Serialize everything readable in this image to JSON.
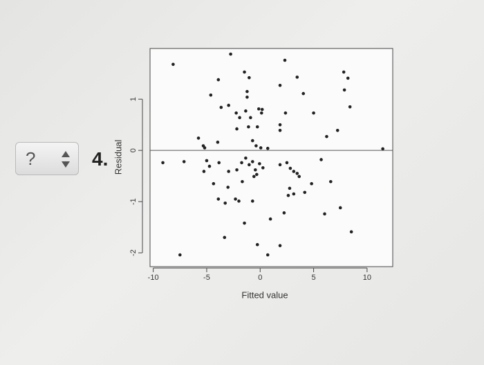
{
  "question": {
    "answer": "?",
    "number": "4."
  },
  "chart_data": {
    "type": "scatter",
    "xlabel": "Fitted value",
    "ylabel": "Residual",
    "x": [
      -8.14,
      -2.76,
      2.31,
      -4.62,
      -3.91,
      -1.47,
      -1.03,
      -1.22,
      -1.22,
      1.86,
      3.46,
      4.04,
      7.82,
      8.21,
      7.88,
      8.4,
      -3.65,
      -2.95,
      -2.24,
      -1.92,
      -1.35,
      -0.9,
      -0.13,
      0.13,
      0.19,
      2.37,
      5.0,
      -2.18,
      -1.09,
      -0.26,
      1.86,
      1.86,
      7.24,
      6.22,
      -5.77,
      -5.32,
      -3.97,
      -5.19,
      -0.71,
      -0.38,
      0.06,
      0.71,
      11.47,
      -9.1,
      -7.12,
      -5.0,
      -4.74,
      -5.26,
      -3.85,
      -2.95,
      -2.18,
      -1.73,
      -1.35,
      -1.03,
      -0.71,
      -0.45,
      -0.06,
      0.26,
      -0.58,
      -0.32,
      1.86,
      2.5,
      2.82,
      3.14,
      3.46,
      3.65,
      5.71,
      -4.36,
      -3.01,
      -1.67,
      2.76,
      3.14,
      4.17,
      4.81,
      6.6,
      -3.91,
      -3.27,
      -2.31,
      -1.99,
      -0.71,
      2.63,
      2.24,
      0.96,
      -1.47,
      6.03,
      7.5,
      8.53,
      -3.33,
      -0.26,
      1.86,
      0.71,
      -7.5
    ],
    "y": [
      1.68,
      1.88,
      1.76,
      1.08,
      1.38,
      1.53,
      1.42,
      1.15,
      1.04,
      1.27,
      1.43,
      1.11,
      1.53,
      1.41,
      1.18,
      0.85,
      0.84,
      0.88,
      0.73,
      0.64,
      0.77,
      0.64,
      0.81,
      0.73,
      0.8,
      0.73,
      0.73,
      0.42,
      0.46,
      0.46,
      0.5,
      0.39,
      0.39,
      0.27,
      0.24,
      0.09,
      0.16,
      0.05,
      0.19,
      0.09,
      0.05,
      0.04,
      0.03,
      -0.24,
      -0.22,
      -0.2,
      -0.31,
      -0.41,
      -0.24,
      -0.41,
      -0.38,
      -0.24,
      -0.15,
      -0.28,
      -0.22,
      -0.38,
      -0.26,
      -0.34,
      -0.51,
      -0.47,
      -0.28,
      -0.24,
      -0.35,
      -0.41,
      -0.45,
      -0.51,
      -0.18,
      -0.65,
      -0.72,
      -0.61,
      -0.74,
      -0.85,
      -0.82,
      -0.65,
      -0.61,
      -0.95,
      -1.03,
      -0.95,
      -0.99,
      -0.99,
      -0.88,
      -1.22,
      -1.34,
      -1.42,
      -1.24,
      -1.12,
      -1.59,
      -1.7,
      -1.84,
      -1.86,
      -2.04,
      -2.04
    ],
    "color": "#222222",
    "xlim": [
      -10.3,
      12.4
    ],
    "ylim": [
      -2.27,
      1.99
    ],
    "xticks": [
      -10,
      -5,
      0,
      5,
      10
    ],
    "yticks": [
      -2,
      -1,
      0,
      1
    ],
    "hline": 0
  }
}
